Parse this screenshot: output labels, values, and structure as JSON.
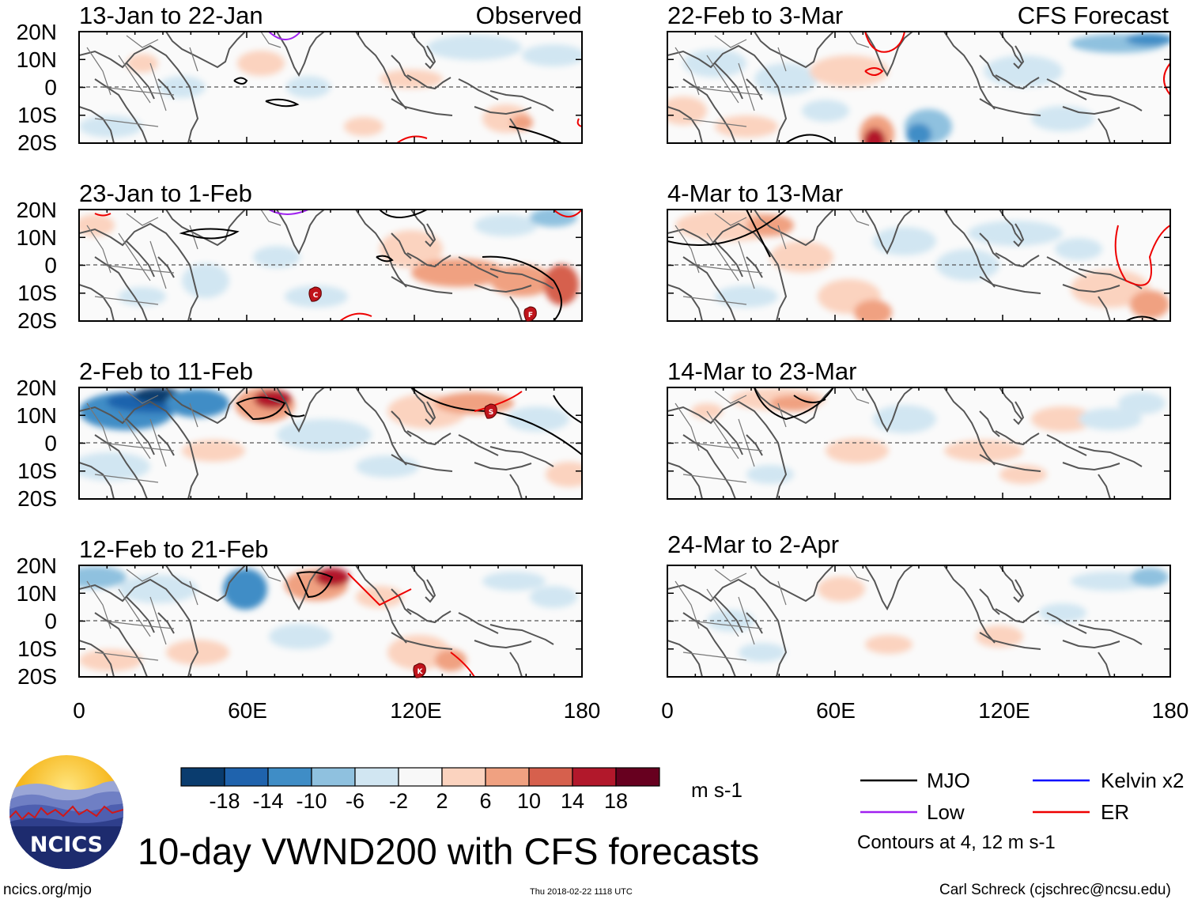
{
  "title": "10-day VWND200 with CFS forecasts",
  "units": "m s-1",
  "observed_label": "Observed",
  "forecast_label": "CFS Forecast",
  "panels": [
    {
      "period": "13-Jan to 22-Jan",
      "kind": "observed"
    },
    {
      "period": "23-Jan to 1-Feb",
      "kind": "observed"
    },
    {
      "period": "2-Feb to 11-Feb",
      "kind": "observed"
    },
    {
      "period": "12-Feb to 21-Feb",
      "kind": "observed"
    },
    {
      "period": "22-Feb to 3-Mar",
      "kind": "forecast"
    },
    {
      "period": "4-Mar to 13-Mar",
      "kind": "forecast"
    },
    {
      "period": "14-Mar to 23-Mar",
      "kind": "forecast"
    },
    {
      "period": "24-Mar to 2-Apr",
      "kind": "forecast"
    }
  ],
  "lat_labels": [
    "20N",
    "10N",
    "0",
    "10S",
    "20S"
  ],
  "lon_labels": [
    "0",
    "60E",
    "120E",
    "180"
  ],
  "colorbar": {
    "tick_labels": [
      "-18",
      "-14",
      "-10",
      "-6",
      "-2",
      "2",
      "6",
      "10",
      "14",
      "18"
    ],
    "colors": [
      "#0a3c6e",
      "#1f63ad",
      "#3f8dc6",
      "#8fc1df",
      "#d1e6f2",
      "#f8f8f8",
      "#fbd3bf",
      "#f0a181",
      "#d6604d",
      "#b2182b",
      "#67001f"
    ]
  },
  "legend": [
    {
      "label": "MJO",
      "color": "#000000"
    },
    {
      "label": "Kelvin x2",
      "color": "#0000ff"
    },
    {
      "label": "Low",
      "color": "#a020f0"
    },
    {
      "label": "ER",
      "color": "#ee0000"
    }
  ],
  "contour_note": "Contours at 4, 12 m s-1",
  "cyclone_markers": [
    "C",
    "F",
    "S",
    "K"
  ],
  "logo_text": "NCICS",
  "footer": {
    "url": "ncics.org/mjo",
    "timestamp": "Thu 2018-02-22 1118 UTC",
    "credit": "Carl Schreck (cjschrec@ncsu.edu)"
  }
}
